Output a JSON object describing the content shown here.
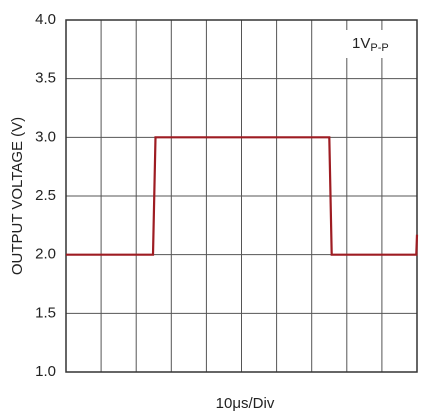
{
  "chart_data": {
    "type": "line",
    "ylabel": "OUTPUT VOLTAGE (V)",
    "xlabel": "10μs/Div",
    "annotation": {
      "text": "1V",
      "sub": "P-P"
    },
    "xlim": [
      0,
      10
    ],
    "x_divisions": 10,
    "ylim": [
      1.0,
      4.0
    ],
    "yticks": [
      {
        "value": 1.0,
        "label": "1.0"
      },
      {
        "value": 1.5,
        "label": "1.5"
      },
      {
        "value": 2.0,
        "label": "2.0"
      },
      {
        "value": 2.5,
        "label": "2.5"
      },
      {
        "value": 3.0,
        "label": "3.0"
      },
      {
        "value": 3.5,
        "label": "3.5"
      },
      {
        "value": 4.0,
        "label": "4.0"
      }
    ],
    "grid": true,
    "x": [
      0,
      2.48,
      2.55,
      7.5,
      7.57,
      9.98,
      10
    ],
    "series": [
      {
        "color": "#9e1c22",
        "values": [
          2.0,
          2.0,
          3.0,
          3.0,
          2.0,
          2.0,
          2.17
        ]
      }
    ]
  }
}
